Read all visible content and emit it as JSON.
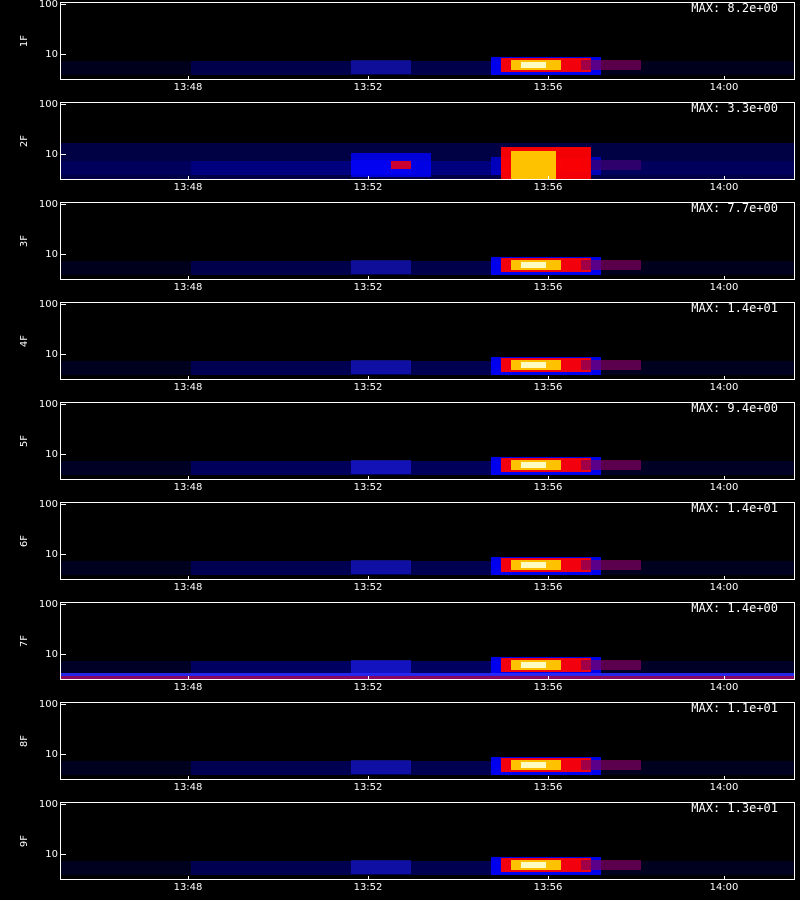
{
  "chart_data": {
    "type": "heatmap",
    "y_axis": {
      "ticks": [
        "10",
        "100"
      ],
      "scale": "log"
    },
    "x_axis": {
      "ticks": [
        "13:48",
        "13:52",
        "13:56",
        "14:00"
      ]
    },
    "panels": [
      {
        "label": "1F",
        "max_label": "MAX: 8.2e+00"
      },
      {
        "label": "2F",
        "max_label": "MAX: 3.3e+00"
      },
      {
        "label": "3F",
        "max_label": "MAX: 7.7e+00"
      },
      {
        "label": "4F",
        "max_label": "MAX: 1.4e+01"
      },
      {
        "label": "5F",
        "max_label": "MAX: 9.4e+00"
      },
      {
        "label": "6F",
        "max_label": "MAX: 1.4e+01"
      },
      {
        "label": "7F",
        "max_label": "MAX: 1.4e+00"
      },
      {
        "label": "8F",
        "max_label": "MAX: 1.1e+01"
      },
      {
        "label": "9F",
        "max_label": "MAX: 1.3e+01"
      }
    ],
    "colormap": [
      "#000000",
      "#0000ff",
      "#ff0000",
      "#ffff00",
      "#ffffff"
    ]
  },
  "footer": ""
}
